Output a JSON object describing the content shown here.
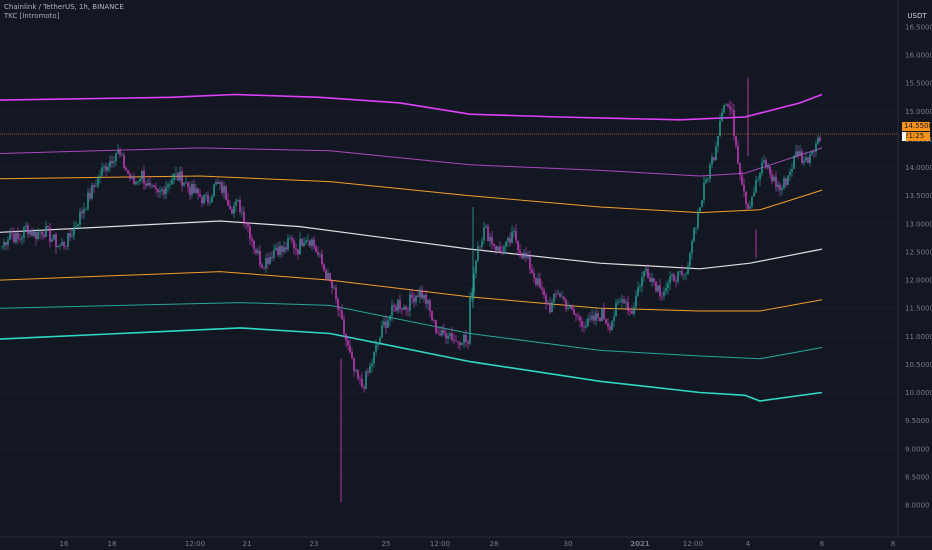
{
  "header": {
    "symbol_line": "Chainlink / TetherUS, 1h, BINANCE",
    "indicator_line": "TKC [Intromoto]"
  },
  "price_axis": {
    "currency": "USDT"
  },
  "price_tag": {
    "value": "14.5508",
    "timer": "21:25"
  },
  "colors": {
    "background": "#131722",
    "up_candle": "#26a69a",
    "down_candle": "#d640c9",
    "band_outer_top": "#e040fb",
    "band_inner_top": "#ab47bc",
    "band_upper_mid": "#f59e2b",
    "basis": "#e0e0e0",
    "band_lower_mid": "#f59e2b",
    "band_inner_bottom": "#26a69a",
    "band_outer_bottom": "#2ed9c3",
    "price_line": "#f7931a",
    "axis_text": "#787b86"
  },
  "chart_data": {
    "type": "candlestick",
    "title": "Chainlink / TetherUS, 1h, BINANCE",
    "ylim": [
      7.75,
      16.8
    ],
    "y_ticks": [
      "16.5000",
      "16.0000",
      "15.5000",
      "15.0000",
      "14.5000",
      "14.0000",
      "13.5000",
      "13.0000",
      "12.5000",
      "12.0000",
      "11.5000",
      "11.0000",
      "10.5000",
      "10.0000",
      "9.5000",
      "9.0000",
      "8.5000",
      "8.0000"
    ],
    "x_ticks": [
      "16",
      "18",
      "12:00",
      "21",
      "23",
      "25",
      "12:00",
      "28",
      "30",
      "2021",
      "12:00",
      "4",
      "6",
      "8"
    ],
    "last_price": 14.5508,
    "close_path": [
      [
        12.6,
        12.85,
        12.7,
        12.95,
        12.8,
        12.9,
        12.75,
        12.6,
        12.7,
        13.0,
        13.3,
        13.6,
        13.9,
        14.1,
        14.3,
        14.0,
        13.7,
        13.9,
        13.6,
        13.5,
        13.7,
        13.85,
        13.8,
        13.6,
        13.5,
        13.4,
        13.7,
        13.6,
        13.3,
        13.35
      ],
      [
        13.3,
        13.0,
        12.6,
        12.3,
        12.4,
        12.6,
        12.5,
        12.7,
        12.55,
        12.8,
        12.7,
        12.4,
        12.1,
        11.8,
        11.3,
        10.8,
        10.3,
        10.1,
        10.4,
        10.8,
        11.2,
        11.4,
        11.6,
        11.5,
        11.7,
        11.8,
        11.6,
        11.2,
        11.0,
        11.1,
        10.9,
        11.0,
        10.8
      ],
      [
        11.6,
        12.6,
        12.9,
        12.7,
        12.5,
        12.6,
        12.8,
        12.5,
        12.3,
        12.0,
        11.7,
        11.5,
        11.8,
        11.6,
        11.4,
        11.3,
        11.2,
        11.3,
        11.4,
        11.2,
        11.5,
        11.7,
        11.4,
        11.9,
        12.2,
        12.0,
        11.8,
        11.9,
        12.1,
        12.0,
        12.2
      ],
      [
        12.6,
        13.2,
        13.8,
        14.3,
        15.2,
        15.0,
        14.0,
        13.3,
        13.7,
        14.1,
        13.8,
        13.6,
        13.9,
        14.3,
        14.1,
        14.4,
        14.55
      ]
    ],
    "bands": {
      "outer_top": [
        [
          0,
          15.2
        ],
        [
          170,
          15.25
        ],
        [
          235,
          15.3
        ],
        [
          320,
          15.25
        ],
        [
          400,
          15.15
        ],
        [
          470,
          14.95
        ],
        [
          560,
          14.9
        ],
        [
          680,
          14.85
        ],
        [
          745,
          14.9
        ],
        [
          800,
          15.15
        ],
        [
          822,
          15.3
        ]
      ],
      "inner_top": [
        [
          0,
          14.25
        ],
        [
          200,
          14.35
        ],
        [
          330,
          14.3
        ],
        [
          470,
          14.05
        ],
        [
          600,
          13.95
        ],
        [
          700,
          13.85
        ],
        [
          745,
          13.9
        ],
        [
          822,
          14.35
        ]
      ],
      "upper_mid": [
        [
          0,
          13.8
        ],
        [
          200,
          13.85
        ],
        [
          330,
          13.75
        ],
        [
          470,
          13.5
        ],
        [
          600,
          13.3
        ],
        [
          700,
          13.2
        ],
        [
          760,
          13.25
        ],
        [
          822,
          13.6
        ]
      ],
      "basis": [
        [
          0,
          12.85
        ],
        [
          220,
          13.05
        ],
        [
          300,
          12.95
        ],
        [
          470,
          12.55
        ],
        [
          600,
          12.3
        ],
        [
          700,
          12.2
        ],
        [
          750,
          12.3
        ],
        [
          822,
          12.55
        ]
      ],
      "lower_mid": [
        [
          0,
          12.0
        ],
        [
          220,
          12.15
        ],
        [
          330,
          12.0
        ],
        [
          470,
          11.7
        ],
        [
          600,
          11.5
        ],
        [
          700,
          11.45
        ],
        [
          760,
          11.45
        ],
        [
          822,
          11.65
        ]
      ],
      "inner_bottom": [
        [
          0,
          11.5
        ],
        [
          240,
          11.6
        ],
        [
          330,
          11.55
        ],
        [
          470,
          11.05
        ],
        [
          600,
          10.75
        ],
        [
          700,
          10.65
        ],
        [
          760,
          10.6
        ],
        [
          822,
          10.8
        ]
      ],
      "outer_bottom": [
        [
          0,
          10.95
        ],
        [
          240,
          11.15
        ],
        [
          330,
          11.05
        ],
        [
          470,
          10.55
        ],
        [
          600,
          10.2
        ],
        [
          700,
          10.0
        ],
        [
          745,
          9.95
        ],
        [
          760,
          9.85
        ],
        [
          822,
          10.0
        ]
      ]
    }
  }
}
